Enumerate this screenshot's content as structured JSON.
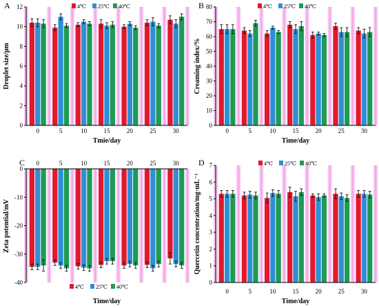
{
  "colors": {
    "s4": "#e0192e",
    "s25": "#2f8fd6",
    "s40": "#1f9a55",
    "stripe": "#f7c8f0",
    "stripeSolid": "#f06ad8"
  },
  "chart_data": [
    {
      "panel": "A",
      "type": "bar",
      "ylabel": "Droplet size/μm",
      "xlabel": "Tmie/day",
      "categories": [
        "0",
        "5",
        "10",
        "15",
        "20",
        "25",
        "30"
      ],
      "ylim": [
        0,
        12
      ],
      "yticks": [
        "0",
        "2",
        "4",
        "6",
        "8",
        "10",
        "12"
      ],
      "invert": false,
      "legend": [
        "4℃",
        "25℃",
        "40℃"
      ],
      "series": [
        {
          "name": "4℃",
          "values": [
            10.4,
            9.9,
            10.2,
            10.3,
            10.0,
            10.4,
            10.7
          ],
          "errors": [
            0.4,
            0.3,
            0.2,
            0.4,
            0.2,
            0.3,
            0.4
          ]
        },
        {
          "name": "25℃",
          "values": [
            10.4,
            11.0,
            10.5,
            10.1,
            10.3,
            10.5,
            10.3
          ],
          "errors": [
            0.4,
            0.3,
            0.2,
            0.3,
            0.2,
            0.4,
            0.4
          ]
        },
        {
          "name": "40℃",
          "values": [
            10.3,
            10.1,
            10.3,
            10.2,
            9.9,
            10.1,
            11.0
          ],
          "errors": [
            0.4,
            0.2,
            0.2,
            0.3,
            0.2,
            0.2,
            0.3
          ]
        }
      ]
    },
    {
      "panel": "B",
      "type": "bar",
      "ylabel": "Creaming index/%",
      "xlabel": "Time/day",
      "categories": [
        "0",
        "5",
        "10",
        "15",
        "20",
        "25",
        "30"
      ],
      "ylim": [
        0,
        80
      ],
      "yticks": [
        "0",
        "10",
        "20",
        "30",
        "40",
        "50",
        "60",
        "70",
        "80"
      ],
      "invert": false,
      "legend": [
        "4℃",
        "25℃",
        "40℃"
      ],
      "series": [
        {
          "name": "4℃",
          "values": [
            65,
            64,
            62,
            68,
            61,
            67,
            64
          ],
          "errors": [
            3,
            2,
            2,
            2,
            2,
            2,
            2
          ]
        },
        {
          "name": "25℃",
          "values": [
            65,
            62,
            66,
            65,
            62,
            63,
            62
          ],
          "errors": [
            3,
            2,
            1,
            3,
            1,
            3,
            3
          ]
        },
        {
          "name": "40℃",
          "values": [
            65,
            69,
            63,
            67,
            61,
            63,
            63
          ],
          "errors": [
            3,
            2,
            1,
            3,
            1,
            3,
            3
          ]
        }
      ]
    },
    {
      "panel": "C",
      "type": "bar",
      "ylabel": "Zeta potential/mV",
      "xlabel": "Time/day",
      "categories": [
        "0",
        "5",
        "10",
        "15",
        "20",
        "25",
        "30"
      ],
      "ylim": [
        -40,
        0
      ],
      "yticks": [
        "-40",
        "-30",
        "-20",
        "-10",
        "0"
      ],
      "invert": true,
      "legend": [
        "4℃",
        "25℃",
        "40℃"
      ],
      "series": [
        {
          "name": "4℃",
          "values": [
            -34.5,
            -33.0,
            -34.3,
            -33.8,
            -34.0,
            -33.8,
            -31.5
          ],
          "errors": [
            1,
            1,
            1,
            1,
            1,
            1,
            2
          ]
        },
        {
          "name": "25℃",
          "values": [
            -34.5,
            -34.0,
            -34.8,
            -32.5,
            -33.5,
            -35.0,
            -33.5
          ],
          "errors": [
            1,
            1,
            1,
            1,
            1,
            1,
            1
          ]
        },
        {
          "name": "40℃",
          "values": [
            -34.0,
            -35.0,
            -35.0,
            -32.5,
            -34.0,
            -33.5,
            -34.0
          ],
          "errors": [
            2,
            1,
            1,
            1,
            1,
            1,
            1
          ]
        }
      ]
    },
    {
      "panel": "D",
      "type": "bar",
      "ylabel": "Quercetin concentration/mg·mL⁻¹",
      "xlabel": "Time/day",
      "categories": [
        "0",
        "5",
        "10",
        "15",
        "20",
        "25",
        "30"
      ],
      "ylim": [
        0,
        7
      ],
      "yticks": [
        "0",
        "1",
        "2",
        "3",
        "4",
        "5",
        "6",
        "7"
      ],
      "invert": false,
      "legend": [
        "4℃",
        "25℃",
        "40℃"
      ],
      "series": [
        {
          "name": "4℃",
          "values": [
            5.3,
            5.2,
            5.05,
            5.4,
            5.2,
            5.3,
            5.3
          ],
          "errors": [
            0.2,
            0.2,
            0.3,
            0.3,
            0.1,
            0.3,
            0.2
          ]
        },
        {
          "name": "25℃",
          "values": [
            5.3,
            5.25,
            5.35,
            5.15,
            5.1,
            5.15,
            5.3
          ],
          "errors": [
            0.2,
            0.2,
            0.2,
            0.3,
            0.2,
            0.2,
            0.2
          ]
        },
        {
          "name": "40℃",
          "values": [
            5.3,
            5.2,
            5.3,
            5.4,
            5.2,
            5.05,
            5.25
          ],
          "errors": [
            0.2,
            0.2,
            0.2,
            0.2,
            0.1,
            0.2,
            0.2
          ]
        }
      ]
    }
  ]
}
